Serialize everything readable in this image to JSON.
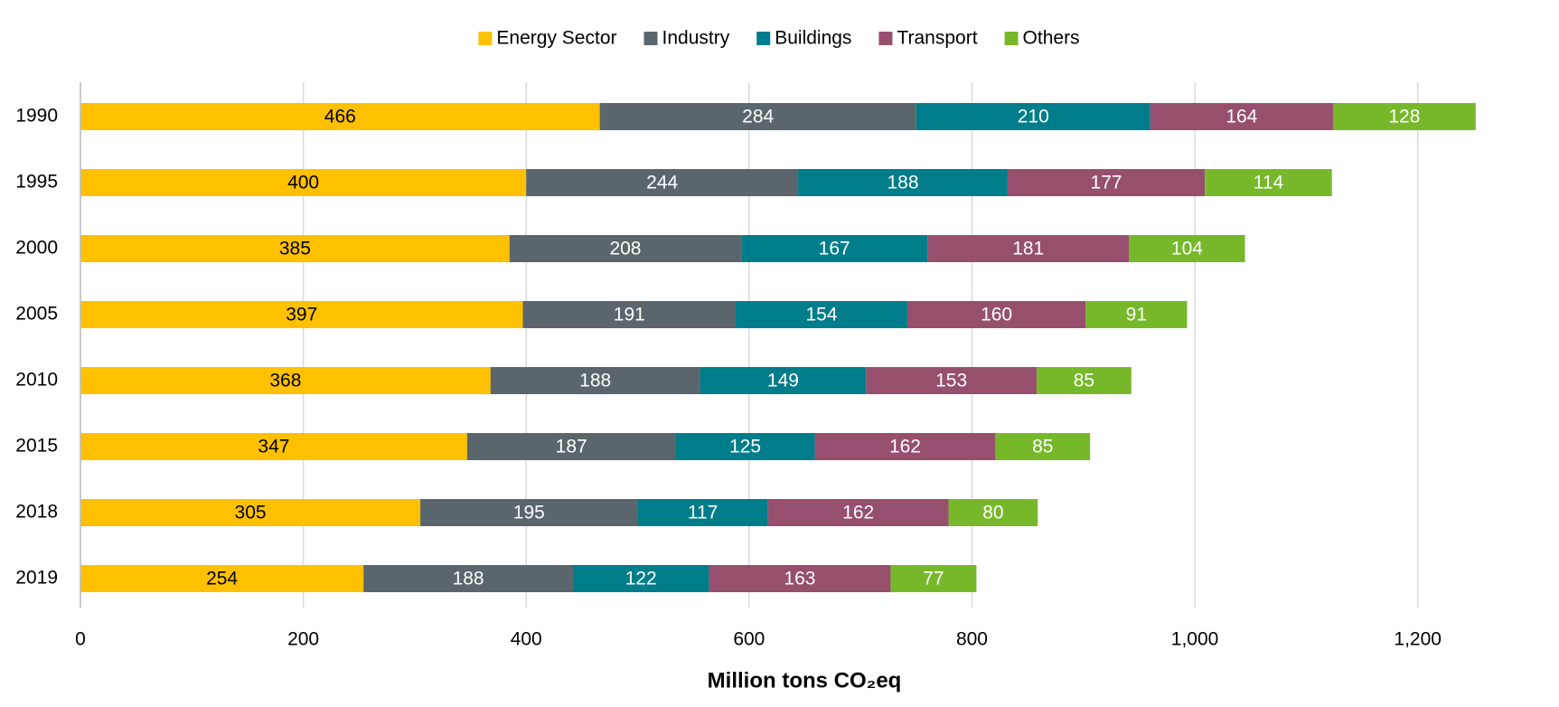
{
  "chart_data": {
    "type": "stacked_bar_horizontal",
    "x_label": "Million tons CO₂eq",
    "categories": [
      "1990",
      "1995",
      "2000",
      "2005",
      "2010",
      "2015",
      "2018",
      "2019"
    ],
    "series": [
      {
        "name": "Energy Sector",
        "color": "#ffc000",
        "values": [
          466,
          400,
          385,
          397,
          368,
          347,
          305,
          254
        ]
      },
      {
        "name": "Industry",
        "color": "#5a666b",
        "values": [
          284,
          244,
          208,
          191,
          188,
          187,
          195,
          188
        ]
      },
      {
        "name": "Buildings",
        "color": "#007d8a",
        "values": [
          210,
          188,
          167,
          154,
          149,
          125,
          117,
          122
        ]
      },
      {
        "name": "Transport",
        "color": "#974f6e",
        "values": [
          164,
          177,
          181,
          160,
          153,
          162,
          162,
          163
        ]
      },
      {
        "name": "Others",
        "color": "#76b82a",
        "values": [
          128,
          114,
          104,
          91,
          85,
          85,
          80,
          77
        ]
      }
    ],
    "xlim": [
      0,
      1300
    ],
    "xticks": [
      0,
      200,
      400,
      600,
      800,
      {
        "value": 1000,
        "label": "1,000"
      },
      {
        "value": 1200,
        "label": "1,200"
      }
    ],
    "grid": true,
    "legend": "top"
  }
}
